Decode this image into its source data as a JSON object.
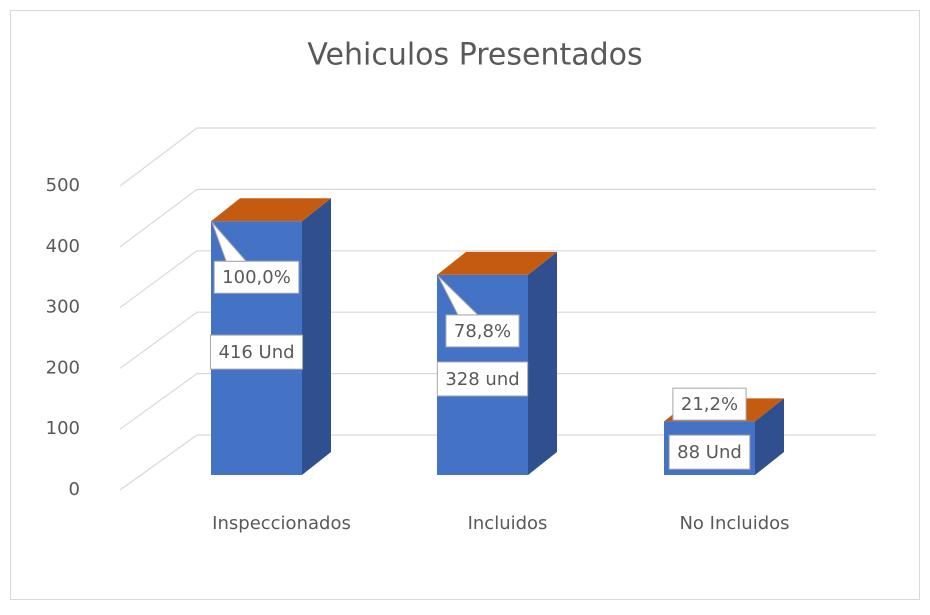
{
  "chart_data": {
    "type": "bar3d",
    "title": "Vehiculos Presentados",
    "categories": [
      "Inspeccionados",
      "Incluidos",
      "No Incluidos"
    ],
    "values": [
      416,
      328,
      88
    ],
    "value_labels": [
      "416 Und",
      "328 und",
      "88 Und"
    ],
    "percent_values": [
      100.0,
      78.8,
      21.2
    ],
    "percent_labels": [
      "100,0%",
      "78,8%",
      "21,2%"
    ],
    "colors": {
      "front": "#4472c4",
      "side": "#2f4f8f",
      "top": "#c55a11"
    },
    "ylim": [
      0,
      500
    ],
    "yticks": [
      0,
      100,
      200,
      300,
      400,
      500
    ],
    "grid": true
  }
}
